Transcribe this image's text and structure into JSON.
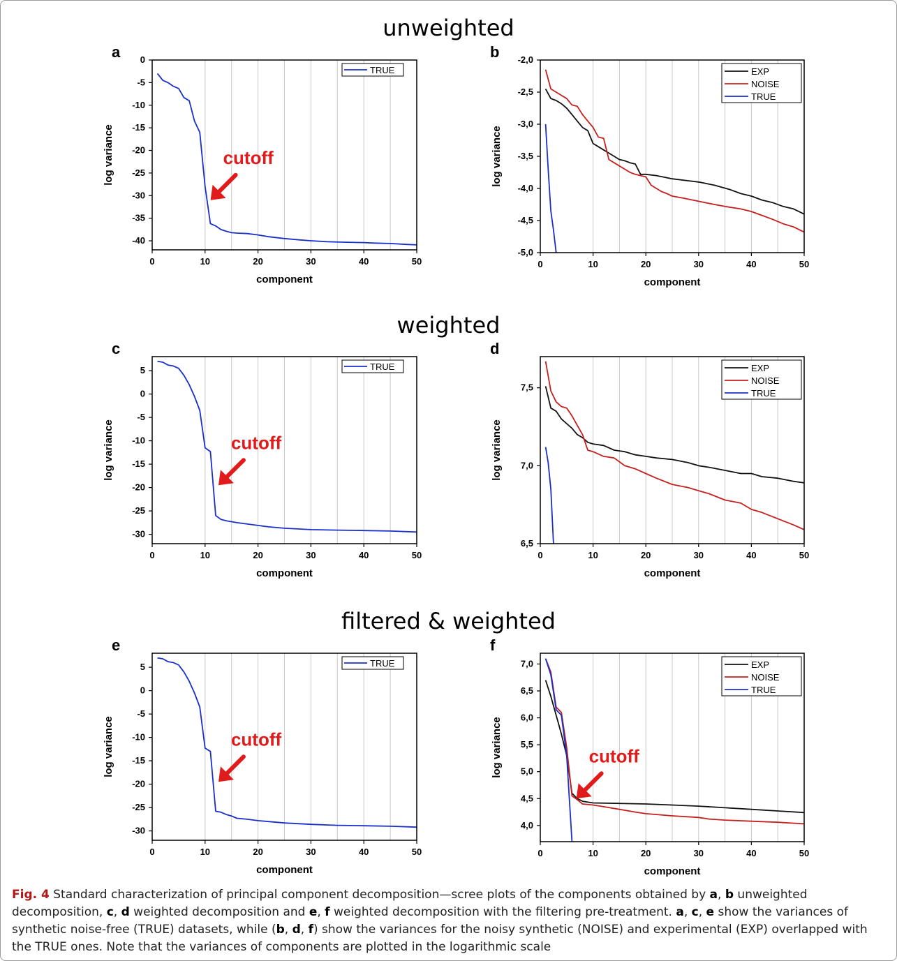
{
  "sections": {
    "unweighted": "unweighted",
    "weighted": "weighted",
    "filtered": "filtered & weighted"
  },
  "colors": {
    "TRUE": "#1a2fc9",
    "EXP": "#111111",
    "NOISE": "#c4201f",
    "annotation": "#e11b1b"
  },
  "caption": {
    "figure_label": "Fig. 4",
    "text_1": "Standard characterization of principal component decomposition—scree plots of the components obtained by ",
    "a": "a",
    "b": "b",
    "c": "c",
    "d": "d",
    "e": "e",
    "f": "f",
    "sep": ", ",
    "text_2": " unweighted decomposition, ",
    "text_3": " weighted decomposition and ",
    "text_4": " weighted decomposition with the filtering pre-treatment. ",
    "text_5": " show the variances of synthetic noise-free (TRUE) datasets, while (",
    "text_6": ") show the variances for the noisy synthetic (NOISE) and experimental (EXP) overlapped with the TRUE ones. Note that the variances of components are plotted in the logarithmic scale"
  },
  "chart_data": [
    {
      "id": "a",
      "panel_label": "a",
      "type": "line",
      "xlabel": "component",
      "ylabel": "log  variance",
      "xlim": [
        0,
        50
      ],
      "ylim": [
        -42,
        0
      ],
      "xticks": [
        "0",
        "10",
        "20",
        "30",
        "40",
        "50"
      ],
      "xtick_values": [
        0,
        10,
        20,
        30,
        40,
        50
      ],
      "yticks": [
        "0",
        "-5",
        "-10",
        "-15",
        "-20",
        "-25",
        "-30",
        "-35",
        "-40"
      ],
      "ytick_values": [
        0,
        -5,
        -10,
        -15,
        -20,
        -25,
        -30,
        -35,
        -40
      ],
      "grid_x": [
        10,
        15,
        20,
        25,
        30,
        35,
        40,
        45
      ],
      "legend": "top-right",
      "legend_style": "single",
      "annotation": {
        "text": "cutoff",
        "target": [
          10.5,
          -31
        ]
      },
      "series": [
        {
          "name": "TRUE",
          "color": "#1a2fc9",
          "x": [
            1,
            2,
            3,
            4,
            5,
            6,
            7,
            8,
            9,
            10,
            11,
            12,
            13,
            14,
            15,
            16,
            18,
            20,
            22,
            25,
            28,
            30,
            33,
            36,
            40,
            42,
            45,
            48,
            50
          ],
          "y": [
            -3,
            -4.5,
            -5,
            -5.8,
            -6.3,
            -8.3,
            -9,
            -13.5,
            -16,
            -28,
            -36.2,
            -36.7,
            -37.5,
            -37.9,
            -38.2,
            -38.3,
            -38.4,
            -38.7,
            -39.1,
            -39.5,
            -39.8,
            -40,
            -40.2,
            -40.3,
            -40.4,
            -40.5,
            -40.6,
            -40.8,
            -40.9
          ]
        }
      ]
    },
    {
      "id": "b",
      "panel_label": "b",
      "type": "line",
      "xlabel": "component",
      "ylabel": "log  variance",
      "xlim": [
        0,
        50
      ],
      "ylim": [
        -5,
        -2
      ],
      "xticks": [
        "0",
        "10",
        "20",
        "30",
        "40",
        "50"
      ],
      "xtick_values": [
        0,
        10,
        20,
        30,
        40,
        50
      ],
      "yticks": [
        "-2,0",
        "-2,5",
        "-3,0",
        "-3,5",
        "-4,0",
        "-4,5",
        "-5,0"
      ],
      "ytick_values": [
        -2,
        -2.5,
        -3,
        -3.5,
        -4,
        -4.5,
        -5
      ],
      "grid_x": [
        10,
        15,
        20,
        25,
        30,
        35,
        40,
        45
      ],
      "legend": "top-right",
      "legend_style": "multi",
      "series": [
        {
          "name": "EXP",
          "color": "#111111",
          "x": [
            1,
            2,
            3,
            4,
            5,
            6,
            7,
            8,
            9,
            10,
            11,
            12,
            13,
            14,
            15,
            16,
            17,
            18,
            19,
            20,
            22,
            25,
            28,
            30,
            33,
            36,
            38,
            40,
            42,
            44,
            46,
            48,
            50
          ],
          "y": [
            -2.45,
            -2.6,
            -2.63,
            -2.68,
            -2.75,
            -2.85,
            -2.95,
            -3.05,
            -3.1,
            -3.3,
            -3.35,
            -3.4,
            -3.45,
            -3.5,
            -3.55,
            -3.57,
            -3.6,
            -3.62,
            -3.78,
            -3.78,
            -3.8,
            -3.85,
            -3.88,
            -3.9,
            -3.95,
            -4.02,
            -4.08,
            -4.12,
            -4.18,
            -4.22,
            -4.28,
            -4.32,
            -4.4
          ]
        },
        {
          "name": "NOISE",
          "color": "#c4201f",
          "x": [
            1,
            2,
            3,
            4,
            5,
            6,
            7,
            8,
            9,
            10,
            11,
            12,
            13,
            14,
            15,
            16,
            17,
            18,
            19,
            20,
            21,
            22,
            23,
            24,
            25,
            27,
            30,
            33,
            35,
            38,
            40,
            42,
            44,
            46,
            48,
            50
          ],
          "y": [
            -2.15,
            -2.45,
            -2.5,
            -2.55,
            -2.6,
            -2.7,
            -2.72,
            -2.85,
            -2.95,
            -3.05,
            -3.2,
            -3.22,
            -3.55,
            -3.6,
            -3.65,
            -3.7,
            -3.75,
            -3.78,
            -3.8,
            -3.82,
            -3.95,
            -4.0,
            -4.05,
            -4.08,
            -4.12,
            -4.15,
            -4.2,
            -4.25,
            -4.28,
            -4.32,
            -4.36,
            -4.42,
            -4.48,
            -4.55,
            -4.6,
            -4.68
          ]
        },
        {
          "name": "TRUE",
          "color": "#1a2fc9",
          "x": [
            1,
            1.5,
            2,
            2.5,
            3
          ],
          "y": [
            -3.0,
            -3.7,
            -4.35,
            -4.65,
            -5.0
          ]
        }
      ]
    },
    {
      "id": "c",
      "panel_label": "c",
      "type": "line",
      "xlabel": "component",
      "ylabel": "log  variance",
      "xlim": [
        0,
        50
      ],
      "ylim": [
        -32,
        8
      ],
      "xticks": [
        "0",
        "10",
        "20",
        "30",
        "40",
        "50"
      ],
      "xtick_values": [
        0,
        10,
        20,
        30,
        40,
        50
      ],
      "yticks": [
        "5",
        "0",
        "-5",
        "-10",
        "-15",
        "-20",
        "-25",
        "-30"
      ],
      "ytick_values": [
        5,
        0,
        -5,
        -10,
        -15,
        -20,
        -25,
        -30
      ],
      "grid_x": [
        10,
        15,
        20,
        25,
        30,
        35,
        40,
        45
      ],
      "legend": "top-right",
      "legend_style": "single",
      "annotation": {
        "text": "cutoff",
        "target": [
          12,
          -19.5
        ]
      },
      "series": [
        {
          "name": "TRUE",
          "color": "#1a2fc9",
          "x": [
            1,
            2,
            3,
            4,
            5,
            6,
            7,
            8,
            9,
            10,
            11,
            12,
            13,
            14,
            15,
            16,
            18,
            20,
            22,
            25,
            30,
            35,
            40,
            45,
            50
          ],
          "y": [
            7,
            6.8,
            6.2,
            6,
            5.5,
            4,
            2,
            -0.5,
            -3.5,
            -11.5,
            -12.3,
            -26,
            -26.8,
            -27.1,
            -27.3,
            -27.5,
            -27.8,
            -28.1,
            -28.4,
            -28.7,
            -29.0,
            -29.1,
            -29.2,
            -29.3,
            -29.5
          ]
        }
      ]
    },
    {
      "id": "d",
      "panel_label": "d",
      "type": "line",
      "xlabel": "component",
      "ylabel": "log  variance",
      "xlim": [
        0,
        50
      ],
      "ylim": [
        6.5,
        7.7
      ],
      "xticks": [
        "0",
        "10",
        "20",
        "30",
        "40",
        "50"
      ],
      "xtick_values": [
        0,
        10,
        20,
        30,
        40,
        50
      ],
      "yticks": [
        "7,5",
        "7,0",
        "6,5"
      ],
      "ytick_values": [
        7.5,
        7.0,
        6.5
      ],
      "grid_x": [
        10,
        15,
        20,
        25,
        30,
        35,
        40,
        45
      ],
      "legend": "top-right",
      "legend_style": "multi",
      "series": [
        {
          "name": "EXP",
          "color": "#111111",
          "x": [
            1,
            2,
            3,
            4,
            5,
            6,
            7,
            8,
            9,
            10,
            12,
            14,
            16,
            18,
            20,
            22,
            25,
            28,
            30,
            32,
            35,
            38,
            40,
            42,
            45,
            48,
            50
          ],
          "y": [
            7.51,
            7.37,
            7.35,
            7.3,
            7.27,
            7.24,
            7.2,
            7.18,
            7.15,
            7.14,
            7.13,
            7.1,
            7.09,
            7.07,
            7.06,
            7.05,
            7.04,
            7.02,
            7.0,
            6.99,
            6.97,
            6.95,
            6.95,
            6.93,
            6.92,
            6.9,
            6.89
          ]
        },
        {
          "name": "NOISE",
          "color": "#c4201f",
          "x": [
            1,
            2,
            3,
            4,
            5,
            6,
            7,
            8,
            9,
            10,
            12,
            14,
            16,
            18,
            20,
            22,
            25,
            28,
            30,
            32,
            35,
            38,
            40,
            42,
            45,
            48,
            50
          ],
          "y": [
            7.67,
            7.48,
            7.41,
            7.38,
            7.37,
            7.32,
            7.26,
            7.2,
            7.1,
            7.09,
            7.06,
            7.05,
            7.0,
            6.98,
            6.95,
            6.92,
            6.88,
            6.86,
            6.84,
            6.82,
            6.78,
            6.76,
            6.72,
            6.7,
            6.66,
            6.62,
            6.59
          ]
        },
        {
          "name": "TRUE",
          "color": "#1a2fc9",
          "x": [
            1,
            1.5,
            2,
            2.5
          ],
          "y": [
            7.12,
            7.02,
            6.85,
            6.5
          ]
        }
      ]
    },
    {
      "id": "e",
      "panel_label": "e",
      "type": "line",
      "xlabel": "component",
      "ylabel": "log  variance",
      "xlim": [
        0,
        50
      ],
      "ylim": [
        -32,
        8
      ],
      "xticks": [
        "0",
        "10",
        "20",
        "30",
        "40",
        "50"
      ],
      "xtick_values": [
        0,
        10,
        20,
        30,
        40,
        50
      ],
      "yticks": [
        "5",
        "0",
        "-5",
        "-10",
        "-15",
        "-20",
        "-25",
        "-30"
      ],
      "ytick_values": [
        5,
        0,
        -5,
        -10,
        -15,
        -20,
        -25,
        -30
      ],
      "grid_x": [
        10,
        15,
        20,
        25,
        30,
        35,
        40,
        45
      ],
      "legend": "top-right",
      "legend_style": "single",
      "annotation": {
        "text": "cutoff",
        "target": [
          12,
          -19.5
        ]
      },
      "series": [
        {
          "name": "TRUE",
          "color": "#1a2fc9",
          "x": [
            1,
            2,
            3,
            4,
            5,
            6,
            7,
            8,
            9,
            10,
            11,
            12,
            13,
            14,
            15,
            16,
            18,
            20,
            22,
            25,
            30,
            35,
            40,
            45,
            50
          ],
          "y": [
            7,
            6.8,
            6.2,
            6,
            5.5,
            4,
            2,
            -0.5,
            -3.5,
            -12.3,
            -13,
            -25.8,
            -26,
            -26.5,
            -26.8,
            -27.3,
            -27.5,
            -27.8,
            -28.0,
            -28.3,
            -28.6,
            -28.8,
            -28.9,
            -29.0,
            -29.2
          ]
        }
      ]
    },
    {
      "id": "f",
      "panel_label": "f",
      "type": "line",
      "xlabel": "component",
      "ylabel": "log  variance",
      "xlim": [
        0,
        50
      ],
      "ylim": [
        3.7,
        7.2
      ],
      "xticks": [
        "0",
        "10",
        "20",
        "30",
        "40",
        "50"
      ],
      "xtick_values": [
        0,
        10,
        20,
        30,
        40,
        50
      ],
      "yticks": [
        "7,0",
        "6,5",
        "6,0",
        "5,5",
        "5,0",
        "4,5",
        "4,0"
      ],
      "ytick_values": [
        7.0,
        6.5,
        6.0,
        5.5,
        5.0,
        4.5,
        4.0
      ],
      "grid_x": [
        10,
        15,
        20,
        25,
        30,
        35,
        40,
        45
      ],
      "legend": "top-right",
      "legend_style": "multi",
      "annotation": {
        "text": "cutoff",
        "target": [
          6.3,
          4.5
        ]
      },
      "series": [
        {
          "name": "EXP",
          "color": "#111111",
          "x": [
            1,
            2,
            3,
            4,
            5,
            6,
            7,
            8,
            10,
            15,
            20,
            25,
            30,
            35,
            40,
            45,
            50
          ],
          "y": [
            6.7,
            6.4,
            6.05,
            5.7,
            5.3,
            4.6,
            4.5,
            4.45,
            4.42,
            4.41,
            4.4,
            4.38,
            4.36,
            4.33,
            4.3,
            4.27,
            4.24
          ]
        },
        {
          "name": "NOISE",
          "color": "#c4201f",
          "x": [
            1,
            2,
            3,
            4,
            5,
            6,
            7,
            8,
            10,
            12,
            15,
            18,
            20,
            25,
            30,
            32,
            35,
            40,
            45,
            50
          ],
          "y": [
            7.1,
            6.85,
            6.2,
            6.1,
            5.45,
            4.55,
            4.48,
            4.4,
            4.38,
            4.35,
            4.3,
            4.25,
            4.22,
            4.18,
            4.15,
            4.12,
            4.1,
            4.08,
            4.06,
            4.03
          ]
        },
        {
          "name": "TRUE",
          "color": "#1a2fc9",
          "x": [
            1,
            2,
            3,
            4,
            5,
            5.5,
            6
          ],
          "y": [
            7.1,
            6.8,
            6.15,
            6.05,
            5.3,
            4.5,
            3.7
          ]
        }
      ]
    }
  ]
}
